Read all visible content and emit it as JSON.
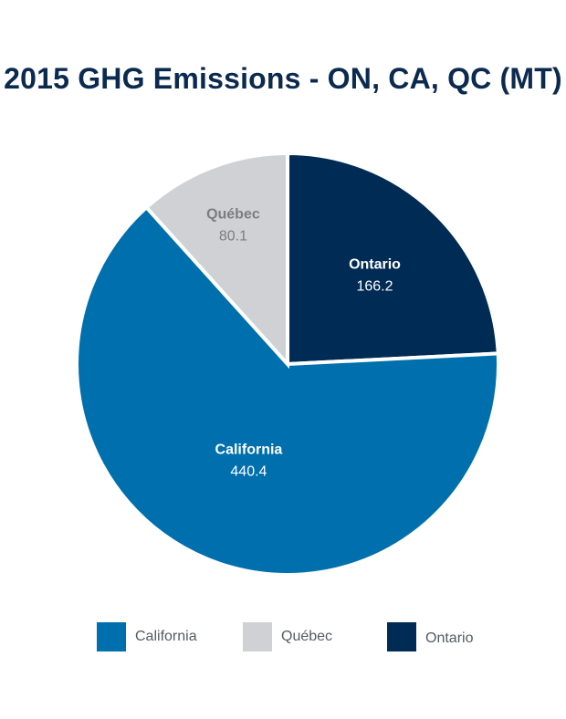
{
  "chart_data": {
    "type": "pie",
    "title": "2015 GHG Emissions - ON, CA, QC (MT)",
    "slices": [
      {
        "label": "Ontario",
        "value": 166.2,
        "value_label": "166.2",
        "color": "#002b54",
        "text_color": "#ffffff"
      },
      {
        "label": "California",
        "value": 440.4,
        "value_label": "440.4",
        "color": "#006fad",
        "text_color": "#ffffff"
      },
      {
        "label": "Québec",
        "value": 80.1,
        "value_label": "80.1",
        "color": "#cfd1d4",
        "text_color": "#7a7e83"
      }
    ],
    "legend": {
      "placement": "bottom",
      "items": [
        {
          "label": "California",
          "color": "#006fad"
        },
        {
          "label": "Québec",
          "color": "#cfd1d4"
        },
        {
          "label": "Ontario",
          "color": "#002b54"
        }
      ]
    }
  }
}
